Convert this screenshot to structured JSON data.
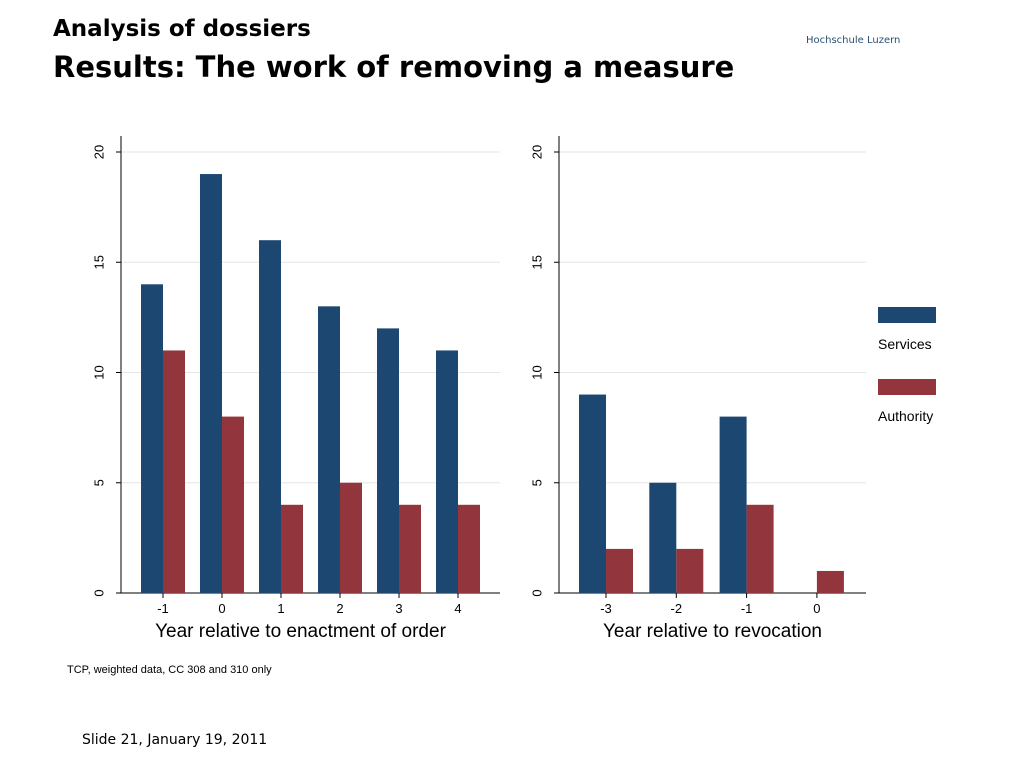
{
  "header": {
    "title": "Analysis of dossiers",
    "subtitle": "Results: The work of removing a measure",
    "brand": "Hochschule Luzern"
  },
  "note": "TCP, weighted data, CC 308 and 310 only",
  "footer": "Slide  21, January 19, 2011",
  "colors": {
    "services": "#1b4771",
    "authority": "#92353d",
    "grid": "#e6e6e6"
  },
  "chart_data": [
    {
      "type": "bar",
      "categories": [
        "-1",
        "0",
        "1",
        "2",
        "3",
        "4"
      ],
      "series": [
        {
          "name": "Services",
          "values": [
            14,
            19,
            16,
            13,
            12,
            11
          ]
        },
        {
          "name": "Authority",
          "values": [
            11,
            8,
            4,
            5,
            4,
            4
          ]
        }
      ],
      "xlabel": "Year relative to enactment of order",
      "ylim": [
        0,
        20
      ],
      "yticks": [
        0,
        5,
        10,
        15,
        20
      ],
      "grid": true
    },
    {
      "type": "bar",
      "categories": [
        "-3",
        "-2",
        "-1",
        "0"
      ],
      "series": [
        {
          "name": "Services",
          "values": [
            9,
            5,
            8,
            0
          ]
        },
        {
          "name": "Authority",
          "values": [
            2,
            2,
            4,
            1
          ]
        }
      ],
      "xlabel": "Year relative to revocation",
      "ylim": [
        0,
        20
      ],
      "yticks": [
        0,
        5,
        10,
        15,
        20
      ],
      "grid": true
    }
  ],
  "legend": {
    "position": "right",
    "items": [
      "Services",
      "Authority"
    ]
  }
}
